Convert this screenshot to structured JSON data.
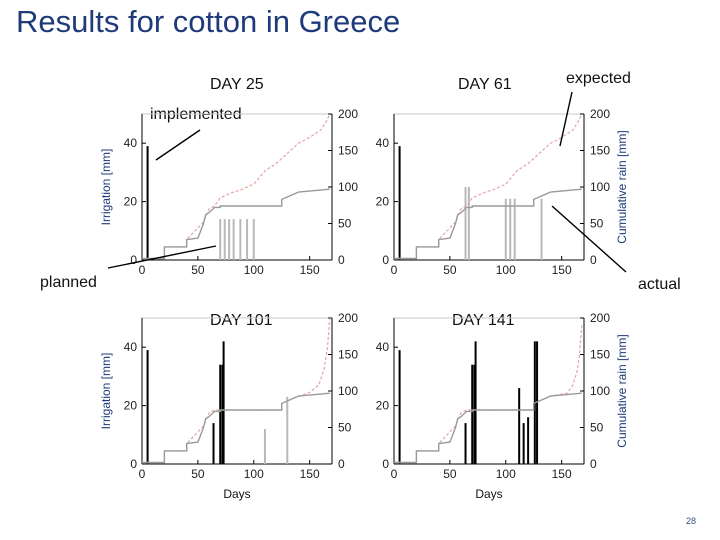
{
  "slide": {
    "title": "Results for cotton in Greece",
    "page_number": "28"
  },
  "annotations": {
    "implemented": "implemented",
    "planned": "planned",
    "expected": "expected",
    "actual": "actual"
  },
  "colors": {
    "title": "#1f3a7a",
    "implemented_bar": "#000000",
    "planned_bar": "#b8b8b8",
    "expected_rain": "#e3a6a6",
    "actual_rain": "#9a9a9a"
  },
  "chart_data": [
    {
      "type": "bar",
      "title": "DAY 25",
      "xlabel": "",
      "ylabel": "Irrigation [mm]",
      "y2label": "",
      "xlim": [
        0,
        170
      ],
      "ylim": [
        0,
        50
      ],
      "y2lim": [
        0,
        200
      ],
      "xticks": [
        0,
        50,
        100,
        150
      ],
      "yticks": [
        0,
        20,
        40
      ],
      "y2ticks": [
        0,
        50,
        100,
        150,
        200
      ],
      "implemented_irrigation": [
        {
          "day": 5,
          "mm": 39
        }
      ],
      "planned_irrigation": [
        {
          "day": 70,
          "mm": 14
        },
        {
          "day": 74,
          "mm": 14
        },
        {
          "day": 78,
          "mm": 14
        },
        {
          "day": 82,
          "mm": 14
        },
        {
          "day": 88,
          "mm": 14
        },
        {
          "day": 94,
          "mm": 14
        },
        {
          "day": 100,
          "mm": 14
        }
      ],
      "actual_cumulative_rain": [
        [
          0,
          2
        ],
        [
          20,
          2
        ],
        [
          20,
          18
        ],
        [
          40,
          18
        ],
        [
          40,
          28
        ],
        [
          50,
          30
        ],
        [
          55,
          50
        ],
        [
          57,
          62
        ],
        [
          60,
          65
        ],
        [
          65,
          72
        ],
        [
          70,
          72
        ],
        [
          70,
          74
        ],
        [
          125,
          74
        ],
        [
          125,
          83
        ],
        [
          140,
          93
        ],
        [
          168,
          97
        ]
      ],
      "expected_cumulative_rain": [
        [
          0,
          2
        ],
        [
          20,
          2
        ],
        [
          20,
          18
        ],
        [
          40,
          18
        ],
        [
          40,
          28
        ],
        [
          55,
          52
        ],
        [
          60,
          70
        ],
        [
          65,
          74
        ],
        [
          70,
          85
        ],
        [
          80,
          92
        ],
        [
          90,
          97
        ],
        [
          100,
          104
        ],
        [
          110,
          122
        ],
        [
          120,
          132
        ],
        [
          130,
          146
        ],
        [
          140,
          160
        ],
        [
          150,
          168
        ],
        [
          160,
          178
        ],
        [
          165,
          190
        ],
        [
          168,
          200
        ]
      ]
    },
    {
      "type": "bar",
      "title": "DAY 61",
      "xlabel": "",
      "ylabel": "",
      "y2label": "Cumulative rain [mm]",
      "xlim": [
        0,
        170
      ],
      "ylim": [
        0,
        50
      ],
      "y2lim": [
        0,
        200
      ],
      "xticks": [
        0,
        50,
        100,
        150
      ],
      "yticks": [
        0,
        20,
        40
      ],
      "y2ticks": [
        0,
        50,
        100,
        150,
        200
      ],
      "implemented_irrigation": [
        {
          "day": 5,
          "mm": 39
        }
      ],
      "planned_irrigation": [
        {
          "day": 64,
          "mm": 25
        },
        {
          "day": 67,
          "mm": 25
        },
        {
          "day": 100,
          "mm": 21
        },
        {
          "day": 104,
          "mm": 21
        },
        {
          "day": 108,
          "mm": 21
        },
        {
          "day": 132,
          "mm": 21
        }
      ],
      "actual_cumulative_rain": [
        [
          0,
          2
        ],
        [
          20,
          2
        ],
        [
          20,
          18
        ],
        [
          40,
          18
        ],
        [
          40,
          28
        ],
        [
          50,
          30
        ],
        [
          55,
          50
        ],
        [
          57,
          62
        ],
        [
          60,
          65
        ],
        [
          65,
          72
        ],
        [
          70,
          72
        ],
        [
          70,
          74
        ],
        [
          125,
          74
        ],
        [
          125,
          83
        ],
        [
          140,
          93
        ],
        [
          168,
          97
        ]
      ],
      "expected_cumulative_rain": [
        [
          0,
          2
        ],
        [
          20,
          2
        ],
        [
          20,
          18
        ],
        [
          40,
          18
        ],
        [
          40,
          28
        ],
        [
          55,
          52
        ],
        [
          60,
          70
        ],
        [
          65,
          74
        ],
        [
          70,
          85
        ],
        [
          80,
          92
        ],
        [
          90,
          97
        ],
        [
          100,
          104
        ],
        [
          110,
          122
        ],
        [
          120,
          132
        ],
        [
          130,
          146
        ],
        [
          140,
          160
        ],
        [
          150,
          168
        ],
        [
          160,
          178
        ],
        [
          165,
          190
        ],
        [
          168,
          200
        ]
      ]
    },
    {
      "type": "bar",
      "title": "DAY 101",
      "xlabel": "Days",
      "ylabel": "Irrigation [mm]",
      "y2label": "",
      "xlim": [
        0,
        170
      ],
      "ylim": [
        0,
        50
      ],
      "y2lim": [
        0,
        200
      ],
      "xticks": [
        0,
        50,
        100,
        150
      ],
      "yticks": [
        0,
        20,
        40
      ],
      "y2ticks": [
        0,
        50,
        100,
        150,
        200
      ],
      "implemented_irrigation": [
        {
          "day": 5,
          "mm": 39
        },
        {
          "day": 64,
          "mm": 14
        },
        {
          "day": 70,
          "mm": 34
        },
        {
          "day": 72,
          "mm": 34
        },
        {
          "day": 73,
          "mm": 42
        }
      ],
      "planned_irrigation": [
        {
          "day": 110,
          "mm": 12
        },
        {
          "day": 130,
          "mm": 23
        }
      ],
      "actual_cumulative_rain": [
        [
          0,
          2
        ],
        [
          20,
          2
        ],
        [
          20,
          18
        ],
        [
          40,
          18
        ],
        [
          40,
          28
        ],
        [
          50,
          30
        ],
        [
          55,
          50
        ],
        [
          57,
          62
        ],
        [
          60,
          65
        ],
        [
          65,
          72
        ],
        [
          70,
          72
        ],
        [
          70,
          74
        ],
        [
          125,
          74
        ],
        [
          125,
          83
        ],
        [
          140,
          93
        ],
        [
          168,
          97
        ]
      ],
      "expected_cumulative_rain": [
        [
          0,
          2
        ],
        [
          20,
          2
        ],
        [
          20,
          18
        ],
        [
          40,
          18
        ],
        [
          40,
          28
        ],
        [
          55,
          52
        ],
        [
          60,
          70
        ],
        [
          65,
          74
        ],
        [
          70,
          74
        ],
        [
          125,
          74
        ],
        [
          125,
          83
        ],
        [
          140,
          93
        ],
        [
          150,
          98
        ],
        [
          158,
          108
        ],
        [
          163,
          130
        ],
        [
          166,
          160
        ],
        [
          168,
          200
        ]
      ]
    },
    {
      "type": "bar",
      "title": "DAY 141",
      "xlabel": "Days",
      "ylabel": "",
      "y2label": "Cumulative rain [mm]",
      "xlim": [
        0,
        170
      ],
      "ylim": [
        0,
        50
      ],
      "y2lim": [
        0,
        200
      ],
      "xticks": [
        0,
        50,
        100,
        150
      ],
      "yticks": [
        0,
        20,
        40
      ],
      "y2ticks": [
        0,
        50,
        100,
        150,
        200
      ],
      "implemented_irrigation": [
        {
          "day": 5,
          "mm": 39
        },
        {
          "day": 64,
          "mm": 14
        },
        {
          "day": 70,
          "mm": 34
        },
        {
          "day": 72,
          "mm": 34
        },
        {
          "day": 73,
          "mm": 42
        },
        {
          "day": 112,
          "mm": 26
        },
        {
          "day": 116,
          "mm": 14
        },
        {
          "day": 120,
          "mm": 16
        },
        {
          "day": 126,
          "mm": 42
        },
        {
          "day": 128,
          "mm": 42
        }
      ],
      "planned_irrigation": [],
      "actual_cumulative_rain": [
        [
          0,
          2
        ],
        [
          20,
          2
        ],
        [
          20,
          18
        ],
        [
          40,
          18
        ],
        [
          40,
          28
        ],
        [
          50,
          30
        ],
        [
          55,
          50
        ],
        [
          57,
          62
        ],
        [
          60,
          65
        ],
        [
          65,
          72
        ],
        [
          70,
          72
        ],
        [
          70,
          74
        ],
        [
          125,
          74
        ],
        [
          125,
          83
        ],
        [
          140,
          93
        ],
        [
          168,
          97
        ]
      ],
      "expected_cumulative_rain": [
        [
          0,
          2
        ],
        [
          20,
          2
        ],
        [
          20,
          18
        ],
        [
          40,
          18
        ],
        [
          40,
          28
        ],
        [
          55,
          52
        ],
        [
          60,
          70
        ],
        [
          65,
          74
        ],
        [
          70,
          74
        ],
        [
          125,
          74
        ],
        [
          125,
          83
        ],
        [
          140,
          93
        ],
        [
          155,
          97
        ],
        [
          160,
          108
        ],
        [
          164,
          128
        ],
        [
          166,
          150
        ],
        [
          168,
          190
        ]
      ]
    }
  ]
}
